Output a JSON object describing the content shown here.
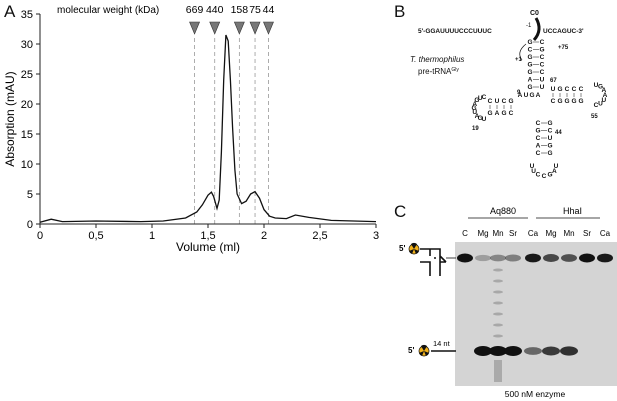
{
  "panels": {
    "a": "A",
    "b": "B",
    "c": "C"
  },
  "chart_data": {
    "type": "line",
    "ylabel": "Absorption (mAU)",
    "xlabel": "Volume (ml)",
    "xlim": [
      0,
      3
    ],
    "ylim": [
      0,
      35
    ],
    "x_ticks": [
      "0",
      "0,5",
      "1",
      "1,5",
      "2",
      "2,5",
      "3"
    ],
    "y_ticks": [
      "0",
      "5",
      "10",
      "15",
      "20",
      "25",
      "30",
      "35"
    ],
    "marker_title": "molecular weight (kDa)",
    "markers": [
      {
        "label": "669",
        "x": 1.38
      },
      {
        "label": "440",
        "x": 1.56
      },
      {
        "label": "158",
        "x": 1.78
      },
      {
        "label": "75",
        "x": 1.92
      },
      {
        "label": "44",
        "x": 2.04
      }
    ],
    "series": [
      {
        "x": [
          0.0,
          0.1,
          0.2,
          0.5,
          0.9,
          1.1,
          1.3,
          1.4,
          1.45,
          1.5,
          1.53,
          1.55,
          1.58,
          1.6,
          1.62,
          1.64,
          1.66,
          1.68,
          1.7,
          1.72,
          1.74,
          1.76,
          1.8,
          1.84,
          1.88,
          1.92,
          1.96,
          2.0,
          2.05,
          2.1,
          2.2,
          2.28,
          2.4,
          2.6,
          2.8,
          3.0
        ],
        "values": [
          0.3,
          0.8,
          0.4,
          0.5,
          0.4,
          0.5,
          1.0,
          2.0,
          3.2,
          4.8,
          5.3,
          4.6,
          2.6,
          4.0,
          12.0,
          24.0,
          31.5,
          30.5,
          24.0,
          16.0,
          9.0,
          5.0,
          3.4,
          3.8,
          5.0,
          5.4,
          4.3,
          2.4,
          1.3,
          1.0,
          0.9,
          1.5,
          1.1,
          0.6,
          0.5,
          0.4
        ]
      }
    ]
  },
  "rna": {
    "leader": "5'-GGAUUUUCCCUUUC",
    "trailer": "UCCAGUC-3'",
    "cleavage_site": "C0",
    "minus_one": "-1",
    "plus_one": "+1",
    "plus_75": "+75",
    "pos_67": "67",
    "pos_9": "9",
    "pos_19": "19",
    "pos_55": "55",
    "pos_44": "44",
    "label_line1": "T. thermophilus",
    "label_line2_base": "pre-tRNA",
    "label_line2_sup": "Gly",
    "acceptor_5": [
      "G",
      "C",
      "G",
      "G",
      "G",
      "A",
      "G"
    ],
    "acceptor_3": [
      "C",
      "G",
      "C",
      "C",
      "C",
      "U",
      "U"
    ],
    "t_stem_top": [
      "U",
      "G",
      "C",
      "C",
      "C"
    ],
    "t_stem_bottom": [
      "C",
      "G",
      "G",
      "G",
      "G"
    ],
    "t_loop": [
      "U",
      "G",
      "A",
      "A",
      "U",
      "U",
      "C"
    ],
    "d_stem_top": [
      "C",
      "U",
      "C",
      "G"
    ],
    "d_stem_bottom": [
      "G",
      "A",
      "G",
      "C"
    ],
    "d_loop": [
      "C",
      "U",
      "G",
      "A",
      "G",
      "U",
      "A",
      "G",
      "U"
    ],
    "ac_stem_5": [
      "C",
      "G",
      "C",
      "A",
      "C"
    ],
    "ac_stem_3": [
      "G",
      "C",
      "U",
      "G",
      "G"
    ],
    "anticodon_loop": [
      "U",
      "U",
      "C",
      "C",
      "G",
      "A",
      "U"
    ],
    "connector": [
      "A",
      "U",
      "G",
      "A"
    ]
  },
  "gel": {
    "group_labels": [
      "Aq880",
      "HhaI"
    ],
    "lane_labels": [
      "C",
      "Mg",
      "Mn",
      "Sr",
      "Ca",
      "Mg",
      "Mn",
      "Sr",
      "Ca"
    ],
    "product_label": "14 nt",
    "five_prime": "5'",
    "caption": "500 nM enzyme",
    "substrate_intensity": [
      1.0,
      0.1,
      0.25,
      0.3,
      0.95,
      0.65,
      0.6,
      1.0,
      0.95
    ],
    "product_intensity": [
      0.0,
      1.0,
      1.0,
      1.0,
      0.45,
      0.75,
      0.8,
      0.0,
      0.0
    ]
  }
}
